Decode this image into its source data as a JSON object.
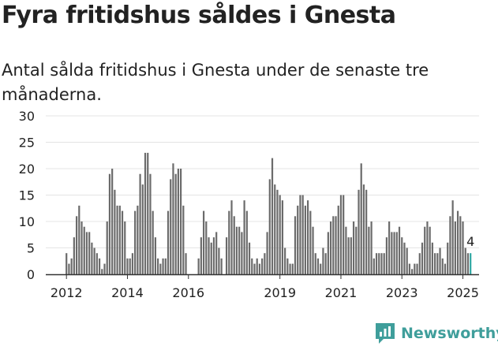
{
  "title": "Fyra fritidshus såldes i Gnesta",
  "subtitle": "Antal sålda fritidshus i Gnesta under de senaste tre månaderna.",
  "logo": "Newsworthy",
  "colors": {
    "bar": "#6b6b6b",
    "highlight": "#2fa8a3",
    "grid": "#e4e4e4",
    "brand": "#3f9e9b"
  },
  "chart_data": {
    "type": "bar",
    "title": "",
    "xlabel": "",
    "ylabel": "",
    "ylim": [
      0,
      30
    ],
    "yticks": [
      0,
      5,
      10,
      15,
      20,
      25,
      30
    ],
    "xticks": [
      {
        "label": "2012",
        "year": 2012
      },
      {
        "label": "2014",
        "year": 2014
      },
      {
        "label": "2016",
        "year": 2016
      },
      {
        "label": "2019",
        "year": 2019
      },
      {
        "label": "2021",
        "year": 2021
      },
      {
        "label": "2023",
        "year": 2023
      },
      {
        "label": "2025",
        "year": 2025
      }
    ],
    "grid": true,
    "series": [
      {
        "start": "2012-01",
        "values": [
          4,
          2,
          3,
          7,
          11,
          13,
          10,
          9,
          8,
          8,
          6,
          5,
          4,
          3,
          1,
          2,
          10,
          19,
          20,
          16,
          13,
          13,
          12,
          10,
          3,
          3,
          4,
          12,
          13,
          19,
          17,
          23,
          23,
          19,
          12,
          7,
          3,
          2,
          3,
          3,
          12,
          18,
          21,
          19,
          20,
          20,
          13,
          4,
          0,
          0,
          0,
          0,
          3,
          7,
          12,
          10,
          7,
          6,
          7,
          8,
          5,
          3,
          0,
          7,
          12,
          14,
          11,
          9,
          9,
          8,
          14,
          12,
          6,
          3,
          2,
          3,
          2,
          3,
          4,
          8,
          18,
          22,
          17,
          16,
          15,
          14,
          5,
          3,
          2,
          2,
          11,
          13,
          15,
          15,
          13,
          14,
          12,
          9,
          4,
          3,
          2,
          5,
          4,
          8,
          10,
          11,
          11,
          13,
          15,
          15,
          9,
          7,
          7,
          10,
          9,
          16,
          21,
          17,
          16,
          9,
          10,
          3,
          4,
          4,
          4,
          4,
          7,
          10,
          8,
          8,
          8,
          9,
          7,
          6,
          5,
          2,
          1,
          2,
          2,
          4,
          6,
          9,
          10,
          9,
          6,
          4,
          4,
          5,
          3,
          2,
          6,
          11,
          14,
          10,
          12,
          11,
          10,
          5,
          4,
          4
        ]
      }
    ],
    "annotation": {
      "label": "4",
      "value": 4
    }
  }
}
